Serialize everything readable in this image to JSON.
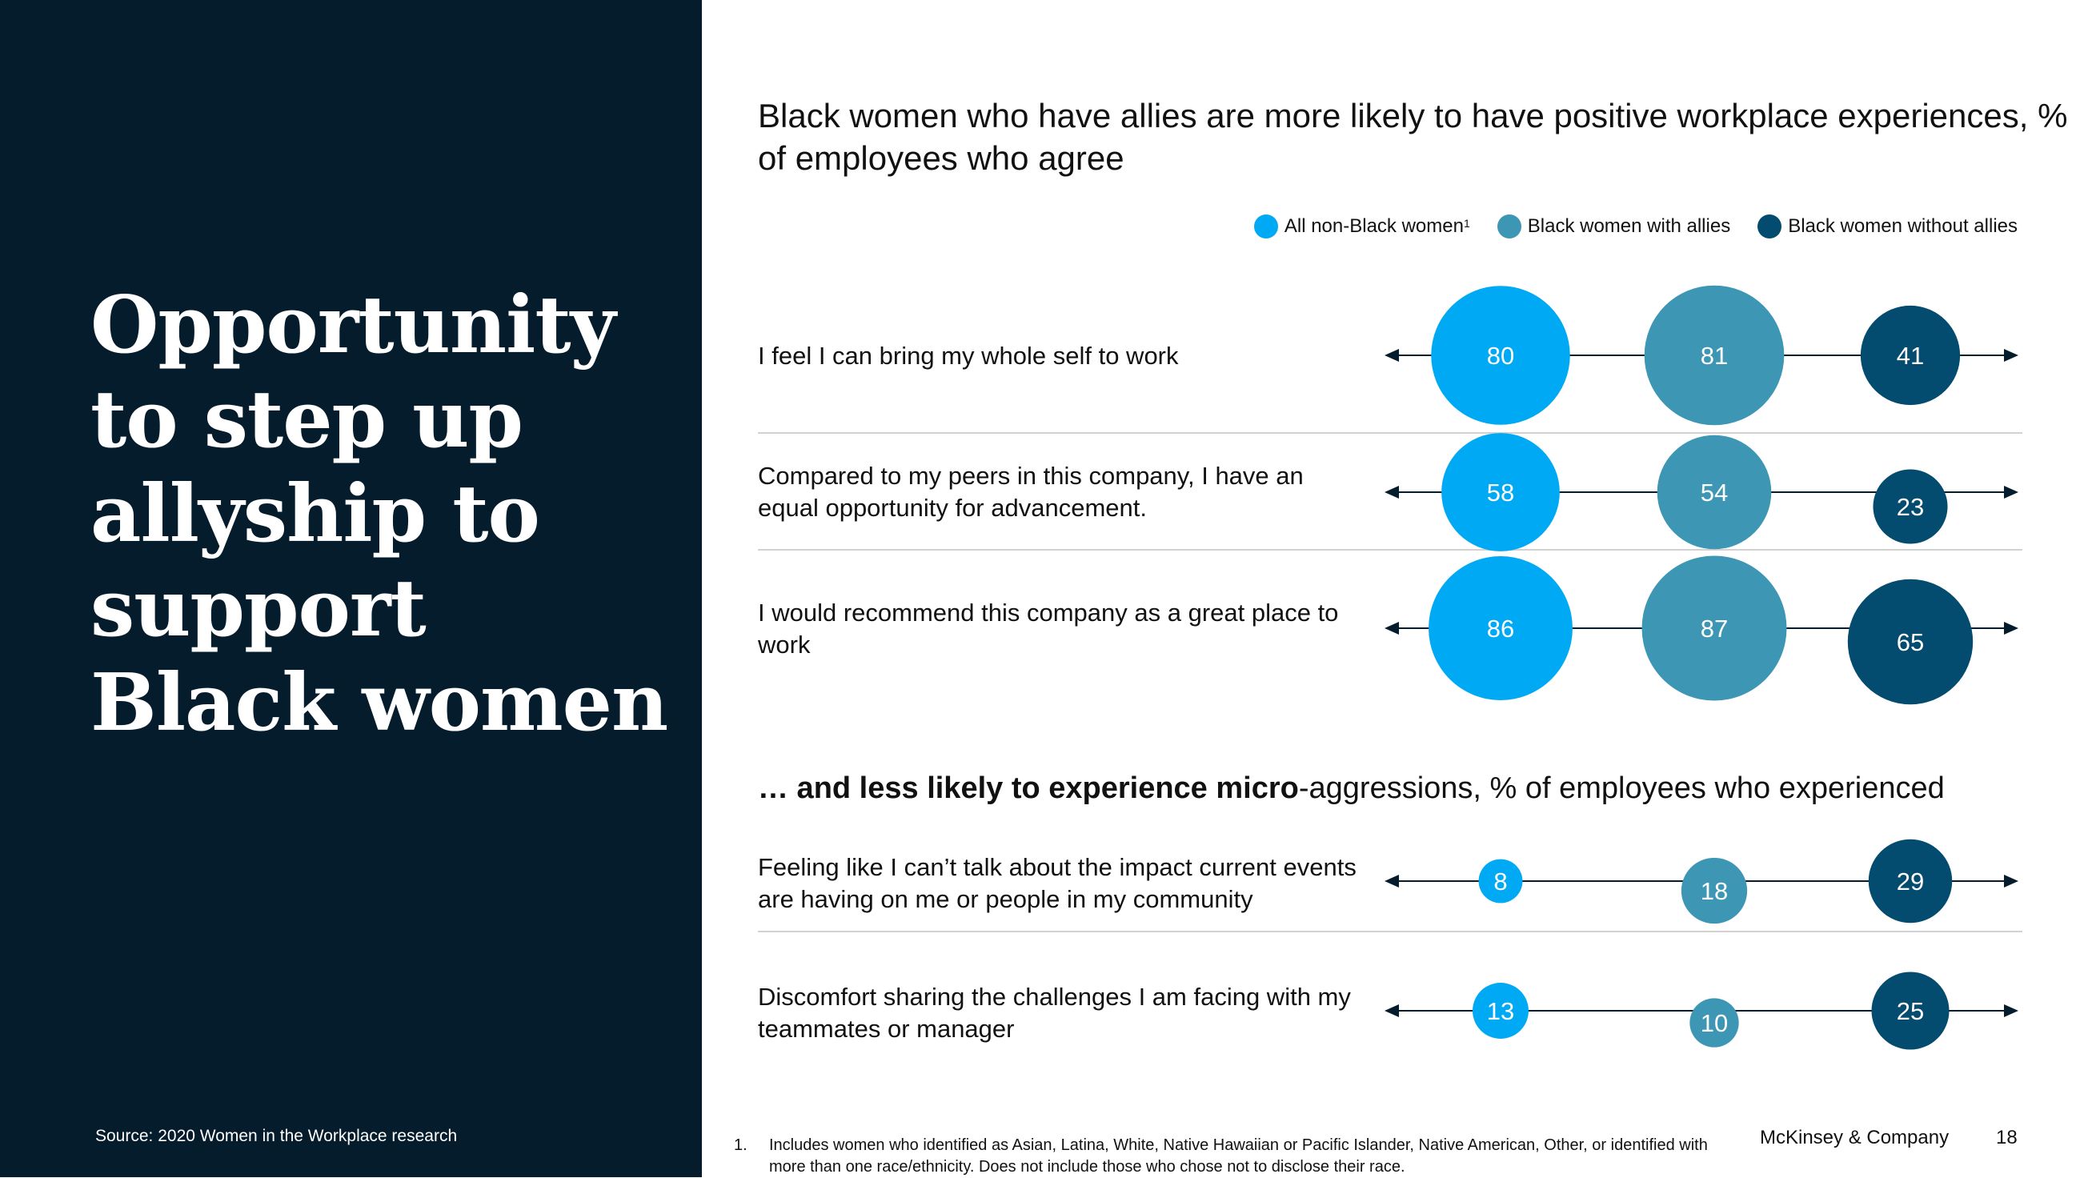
{
  "headline": "Opportunity to step up allyship to support Black women",
  "source": "Source: 2020 Women in the Workplace research",
  "footnote": {
    "number": "1.",
    "text": "Includes women who identified as Asian, Latina, White, Native Hawaiian or Pacific Islander, Native American, Other, or identified with more than one race/ethnicity. Does not include those who chose not to disclose their race."
  },
  "brand": "McKinsey & Company",
  "page_number": "18",
  "colors": {
    "panel": "#051c2c",
    "all_non_black_women": "#00a9f4",
    "black_women_with_allies": "#3c96b4",
    "black_women_without_allies": "#034b6f",
    "axis": "#051c2c"
  },
  "legend": [
    {
      "label": "All non-Black women",
      "sup": "1",
      "color": "#00a9f4"
    },
    {
      "label": "Black women with allies",
      "sup": "",
      "color": "#3c96b4"
    },
    {
      "label": "Black women without allies",
      "sup": "",
      "color": "#034b6f"
    }
  ],
  "chart_data": [
    {
      "type": "bubble-row",
      "title": "Black women who have allies are more likely to have positive workplace experiences, % of employees who agree",
      "series": [
        {
          "name": "All non-Black women"
        },
        {
          "name": "Black women with allies"
        },
        {
          "name": "Black women without allies"
        }
      ],
      "rows": [
        {
          "label": "I feel I can bring my whole self to work",
          "values": [
            80,
            81,
            41
          ]
        },
        {
          "label": "Compared to my peers in this company, I have an equal opportunity for advancement.",
          "values": [
            58,
            54,
            23
          ]
        },
        {
          "label": "I would recommend this company as a great place to work",
          "values": [
            86,
            87,
            65
          ]
        }
      ]
    },
    {
      "type": "bubble-row",
      "title_bold": "… and less likely to experience micro",
      "title_rest": "-aggressions, % of employees who experienced",
      "series": [
        {
          "name": "All non-Black women"
        },
        {
          "name": "Black women with allies"
        },
        {
          "name": "Black women without allies"
        }
      ],
      "rows": [
        {
          "label": "Feeling like I can’t talk about the impact current events are having on me or people in my community",
          "values": [
            8,
            18,
            29
          ]
        },
        {
          "label": "Discomfort sharing the challenges I am facing with my teammates or manager",
          "values": [
            13,
            10,
            25
          ]
        }
      ]
    }
  ]
}
